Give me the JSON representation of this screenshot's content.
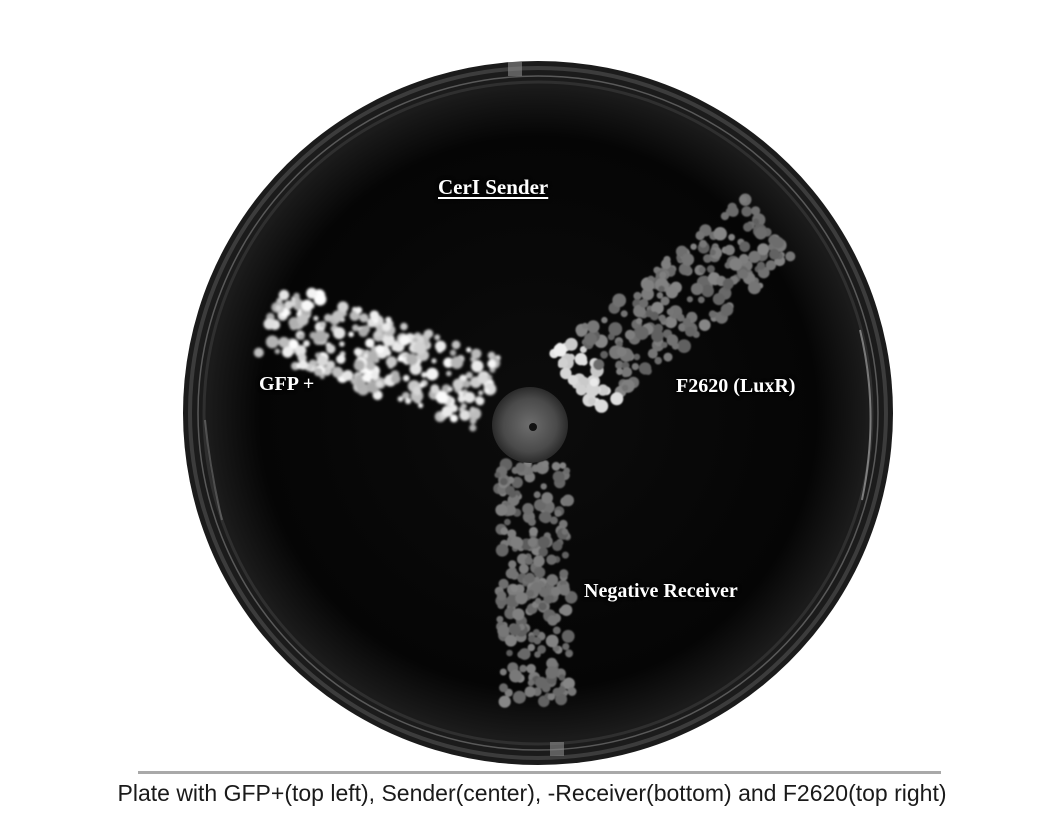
{
  "plate": {
    "labels": {
      "sender": "CerI Sender",
      "gfp_positive": "GFP +",
      "luxr": "F2620 (LuxR)",
      "negative_receiver": "Negative Receiver"
    }
  },
  "caption": "Plate with GFP+(top left), Sender(center), -Receiver(bottom) and F2620(top right)",
  "colors": {
    "background": "#ffffff",
    "agar": "#050505",
    "plate_rim": "#2b2b2b",
    "gfp_bright": "#ffffff",
    "colony_dim": "#8a8a8a",
    "caption_text": "#1a1a1a",
    "caption_rule": "#a9a9a9"
  }
}
